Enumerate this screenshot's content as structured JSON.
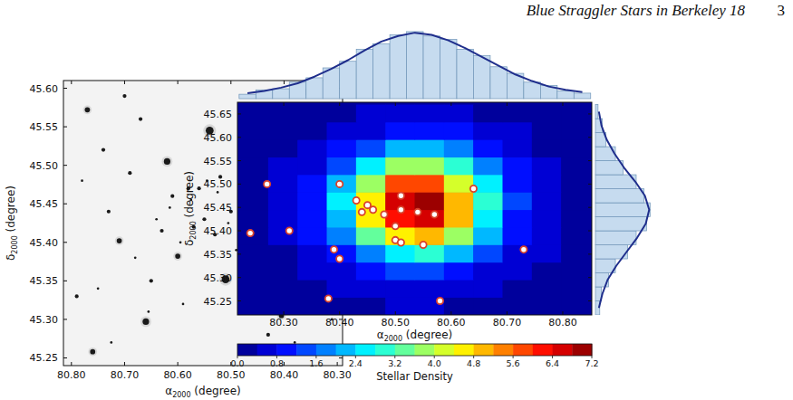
{
  "header": {
    "title": "Blue Straggler Stars in Berkeley 18",
    "page": "3"
  },
  "chart_data": [
    {
      "type": "image",
      "x_label": {
        "symbol": "α",
        "subscript": "2000",
        "unit": "(degree)"
      },
      "y_label": {
        "symbol": "δ",
        "subscript": "2000",
        "unit": "(degree)"
      },
      "xlim": [
        80.815,
        80.29
      ],
      "ylim": [
        45.24,
        45.61
      ],
      "xticks": [
        {
          "value": 80.8,
          "label": "80.80"
        },
        {
          "value": 80.7,
          "label": "80.70"
        },
        {
          "value": 80.6,
          "label": "80.60"
        },
        {
          "value": 80.5,
          "label": "80.50"
        },
        {
          "value": 80.4,
          "label": "80.40"
        },
        {
          "value": 80.3,
          "label": "80.30"
        }
      ],
      "yticks": [
        45.25,
        {
          "value": 45.3,
          "label": "45.30"
        },
        45.35,
        {
          "value": 45.4,
          "label": "45.40"
        },
        45.45,
        {
          "value": 45.5,
          "label": "45.50"
        },
        45.55,
        {
          "value": 45.6,
          "label": "45.60"
        }
      ],
      "stars": {
        "x": [
          80.54,
          80.36,
          80.62,
          80.51,
          80.66,
          80.76,
          80.77,
          80.35,
          80.71,
          80.6,
          80.47,
          80.37,
          80.405,
          80.44,
          80.32,
          80.58,
          80.69,
          80.73,
          80.48,
          80.55,
          80.63,
          80.42,
          80.52,
          80.57,
          80.45,
          80.39,
          80.33,
          80.79,
          80.67,
          80.5,
          80.61,
          80.74,
          80.43,
          80.53,
          80.56,
          80.65,
          80.7,
          80.46,
          80.38,
          80.59,
          80.34,
          80.78,
          80.64,
          80.49,
          80.41,
          80.68,
          80.31,
          80.75,
          80.575,
          80.455,
          80.525,
          80.615,
          80.485,
          80.505,
          80.545,
          80.595,
          80.435,
          80.655,
          80.365,
          80.725
        ],
        "y": [
          45.545,
          45.595,
          45.505,
          45.352,
          45.297,
          45.258,
          45.572,
          45.437,
          45.402,
          45.382,
          45.332,
          45.462,
          45.305,
          45.54,
          45.525,
          45.47,
          45.49,
          45.44,
          45.455,
          45.43,
          45.415,
          45.395,
          45.485,
          45.42,
          45.375,
          45.51,
          45.36,
          45.33,
          45.56,
          45.44,
          45.46,
          45.52,
          45.28,
          45.41,
          45.47,
          45.35,
          45.59,
          45.5,
          45.27,
          45.32,
          45.58,
          45.48,
          45.43,
          45.39,
          45.45,
          45.38,
          45.3,
          45.34,
          45.455,
          45.445,
          45.465,
          45.445,
          45.47,
          45.425,
          45.48,
          45.4,
          45.49,
          45.31,
          45.555,
          45.27
        ],
        "size": [
          5,
          4,
          4,
          5,
          4,
          3,
          3,
          3,
          3,
          3,
          3,
          3,
          3,
          3,
          2,
          2,
          2,
          2,
          2,
          2,
          2,
          2,
          2,
          2,
          2,
          2,
          2,
          2,
          2,
          2,
          2,
          2,
          2,
          2,
          2,
          2,
          2,
          1,
          1,
          1,
          1,
          1,
          1,
          1,
          1,
          1,
          1,
          1,
          1,
          1,
          1,
          1,
          1,
          1,
          1,
          1,
          1,
          1,
          1,
          1
        ]
      }
    },
    {
      "type": "contour",
      "x_label": {
        "symbol": "α",
        "subscript": "2000",
        "unit": "(degree)"
      },
      "y_label": {
        "symbol": "δ",
        "subscript": "2000",
        "unit": "(degree)"
      },
      "xlim": [
        80.217,
        80.852
      ],
      "ylim": [
        45.22,
        45.675
      ],
      "xticks": [
        {
          "value": 80.3,
          "label": "80.30"
        },
        {
          "value": 80.4,
          "label": "80.40"
        },
        {
          "value": 80.5,
          "label": "80.50"
        },
        {
          "value": 80.6,
          "label": "80.60"
        },
        {
          "value": 80.7,
          "label": "80.70"
        },
        {
          "value": 80.8,
          "label": "80.80"
        }
      ],
      "yticks": [
        45.25,
        {
          "value": 45.3,
          "label": "45.30"
        },
        45.35,
        {
          "value": 45.4,
          "label": "45.40"
        },
        45.45,
        {
          "value": 45.5,
          "label": "45.50"
        },
        45.55,
        {
          "value": 45.6,
          "label": "45.60"
        },
        45.65
      ],
      "density": {
        "x": [
          80.246,
          80.299,
          80.351,
          80.404,
          80.456,
          80.509,
          80.561,
          80.614,
          80.666,
          80.719,
          80.771,
          80.824
        ],
        "y": [
          45.239,
          45.276,
          45.314,
          45.351,
          45.389,
          45.426,
          45.464,
          45.501,
          45.539,
          45.576,
          45.614,
          45.651
        ],
        "z": [
          [
            0.3,
            0.3,
            0.31,
            0.34,
            0.37,
            0.4,
            0.41,
            0.38,
            0.34,
            0.32,
            0.3,
            0.3
          ],
          [
            0.3,
            0.31,
            0.35,
            0.43,
            0.56,
            0.68,
            0.69,
            0.58,
            0.45,
            0.36,
            0.32,
            0.3
          ],
          [
            0.31,
            0.33,
            0.43,
            0.68,
            1.06,
            1.4,
            1.44,
            1.13,
            0.74,
            0.46,
            0.34,
            0.31
          ],
          [
            0.31,
            0.37,
            0.59,
            1.14,
            1.99,
            2.77,
            2.84,
            2.16,
            1.28,
            0.66,
            0.4,
            0.32
          ],
          [
            0.32,
            0.43,
            0.82,
            1.8,
            3.32,
            4.71,
            4.85,
            3.63,
            2.06,
            0.95,
            0.48,
            0.33
          ],
          [
            0.33,
            0.48,
            1.02,
            2.36,
            4.43,
            6.34,
            6.52,
            4.86,
            2.71,
            1.18,
            0.54,
            0.35
          ],
          [
            0.33,
            0.49,
            1.06,
            2.49,
            4.7,
            6.73,
            6.92,
            5.15,
            2.86,
            1.24,
            0.56,
            0.35
          ],
          [
            0.33,
            0.46,
            0.94,
            2.13,
            3.99,
            5.69,
            5.85,
            4.37,
            2.45,
            1.09,
            0.52,
            0.34
          ],
          [
            0.32,
            0.4,
            0.71,
            1.47,
            2.65,
            3.74,
            3.85,
            2.9,
            1.67,
            0.8,
            0.44,
            0.33
          ],
          [
            0.31,
            0.35,
            0.51,
            0.9,
            1.5,
            2.05,
            2.11,
            1.62,
            1.0,
            0.56,
            0.37,
            0.31
          ],
          [
            0.3,
            0.32,
            0.38,
            0.53,
            0.77,
            0.98,
            1.0,
            0.81,
            0.57,
            0.4,
            0.33,
            0.3
          ],
          [
            0.3,
            0.31,
            0.33,
            0.37,
            0.45,
            0.51,
            0.52,
            0.46,
            0.39,
            0.33,
            0.31,
            0.3
          ]
        ]
      },
      "colorbar": {
        "label": "Stellar Density",
        "levels": [
          0,
          0.4,
          0.8,
          1.2,
          1.6,
          2.0,
          2.4,
          2.8,
          3.2,
          3.6,
          4.0,
          4.4,
          4.8,
          5.2,
          5.6,
          6.0,
          6.4,
          6.8,
          7.2
        ],
        "ticks": [
          {
            "value": 0,
            "label": "0.0"
          },
          0.8,
          1.6,
          2.4,
          3.2,
          {
            "value": 4,
            "label": "4.0"
          },
          4.8,
          5.6,
          6.4,
          7.2
        ]
      },
      "series": [
        {
          "type": "scatter",
          "color": "#d9412b",
          "marker": "circle",
          "x": [
            80.27,
            80.24,
            80.31,
            80.4,
            80.43,
            80.45,
            80.44,
            80.46,
            80.48,
            80.51,
            80.51,
            80.54,
            80.57,
            80.5,
            80.5,
            80.51,
            80.55,
            80.39,
            80.4,
            80.64,
            80.73,
            80.38,
            80.58
          ],
          "values": [
            45.5,
            45.395,
            45.4,
            45.5,
            45.465,
            45.455,
            45.44,
            45.445,
            45.435,
            45.475,
            45.445,
            45.44,
            45.435,
            45.41,
            45.38,
            45.375,
            45.37,
            45.36,
            45.34,
            45.49,
            45.36,
            45.255,
            45.25
          ]
        }
      ],
      "x_histogram": {
        "bins": [
          80.22,
          80.25,
          80.28,
          80.31,
          80.34,
          80.37,
          80.4,
          80.43,
          80.46,
          80.49,
          80.52,
          80.55,
          80.58,
          80.61,
          80.64,
          80.67,
          80.7,
          80.73,
          80.76,
          80.79,
          80.82,
          80.85
        ],
        "counts": [
          4,
          8,
          9,
          15,
          19,
          28,
          34,
          45,
          50,
          58,
          61,
          57,
          54,
          45,
          39,
          29,
          23,
          15,
          12,
          7,
          5
        ],
        "ylim": [
          0,
          70
        ],
        "fit": {
          "x": [
            80.235,
            80.265,
            80.295,
            80.325,
            80.355,
            80.385,
            80.415,
            80.445,
            80.475,
            80.505,
            80.535,
            80.565,
            80.595,
            80.625,
            80.655,
            80.685,
            80.715,
            80.745,
            80.775,
            80.805,
            80.835
          ],
          "values": [
            5,
            7,
            10,
            14,
            20,
            27,
            35,
            44,
            52,
            57,
            60,
            58,
            53,
            46,
            38,
            30,
            22,
            16,
            11,
            8,
            6
          ]
        }
      },
      "y_histogram": {
        "bins": [
          45.22,
          45.25,
          45.28,
          45.31,
          45.34,
          45.37,
          45.4,
          45.43,
          45.46,
          45.49,
          45.52,
          45.55,
          45.58,
          45.61,
          45.64,
          45.67
        ],
        "counts": [
          5,
          7,
          15,
          23,
          37,
          47,
          59,
          63,
          56,
          47,
          32,
          23,
          12,
          8,
          3
        ],
        "xlim": [
          0,
          70
        ],
        "fit": {
          "x": [
            45.235,
            45.265,
            45.295,
            45.325,
            45.355,
            45.385,
            45.415,
            45.445,
            45.475,
            45.505,
            45.535,
            45.565,
            45.595,
            45.625,
            45.655
          ],
          "values": [
            4,
            8,
            14,
            24,
            36,
            48,
            58,
            62,
            57,
            46,
            33,
            22,
            13,
            7,
            4
          ]
        }
      }
    }
  ]
}
